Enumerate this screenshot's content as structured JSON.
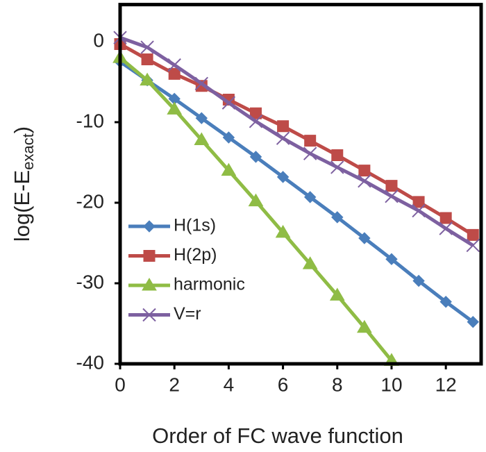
{
  "chart_data": {
    "type": "line",
    "x_label": "Order of FC wave function",
    "y_label_parts": [
      "log(E-E",
      "exact",
      ")"
    ],
    "x": [
      0,
      1,
      2,
      3,
      4,
      5,
      6,
      7,
      8,
      9,
      10,
      11,
      12,
      13
    ],
    "series": [
      {
        "name": "H(1s)",
        "color": "#4a7ebb",
        "marker": "diamond",
        "values": [
          -2.5,
          -4.8,
          -7.1,
          -9.5,
          -11.9,
          -14.3,
          -16.8,
          -19.3,
          -21.8,
          -24.4,
          -27.0,
          -29.7,
          -32.3,
          -34.8
        ]
      },
      {
        "name": "H(2p)",
        "color": "#be4b48",
        "marker": "square",
        "values": [
          -0.3,
          -2.2,
          -4.0,
          -5.5,
          -7.2,
          -8.9,
          -10.5,
          -12.3,
          -14.1,
          -16.0,
          -17.9,
          -19.9,
          -21.9,
          -24.0
        ]
      },
      {
        "name": "harmonic",
        "color": "#8fbc45",
        "marker": "triangle",
        "values": [
          -2.0,
          -4.8,
          -8.4,
          -12.2,
          -16.0,
          -19.8,
          -23.7,
          -27.6,
          -31.5,
          -35.5,
          -39.6,
          null,
          null,
          null
        ]
      },
      {
        "name": "V=r",
        "color": "#7d60a0",
        "marker": "x",
        "values": [
          0.5,
          -0.7,
          -2.9,
          -5.2,
          -7.6,
          -9.9,
          -12.0,
          -13.9,
          -15.6,
          -17.3,
          -19.2,
          -21.0,
          -23.2,
          -25.3
        ]
      }
    ],
    "xlim": [
      0,
      13.3
    ],
    "xticks": [
      0,
      2,
      4,
      6,
      8,
      10,
      12
    ],
    "ylim": [
      -40,
      4.6
    ],
    "yticks": [
      0,
      -10,
      -20,
      -30,
      -40
    ],
    "legend": "lower left",
    "grid": false
  }
}
